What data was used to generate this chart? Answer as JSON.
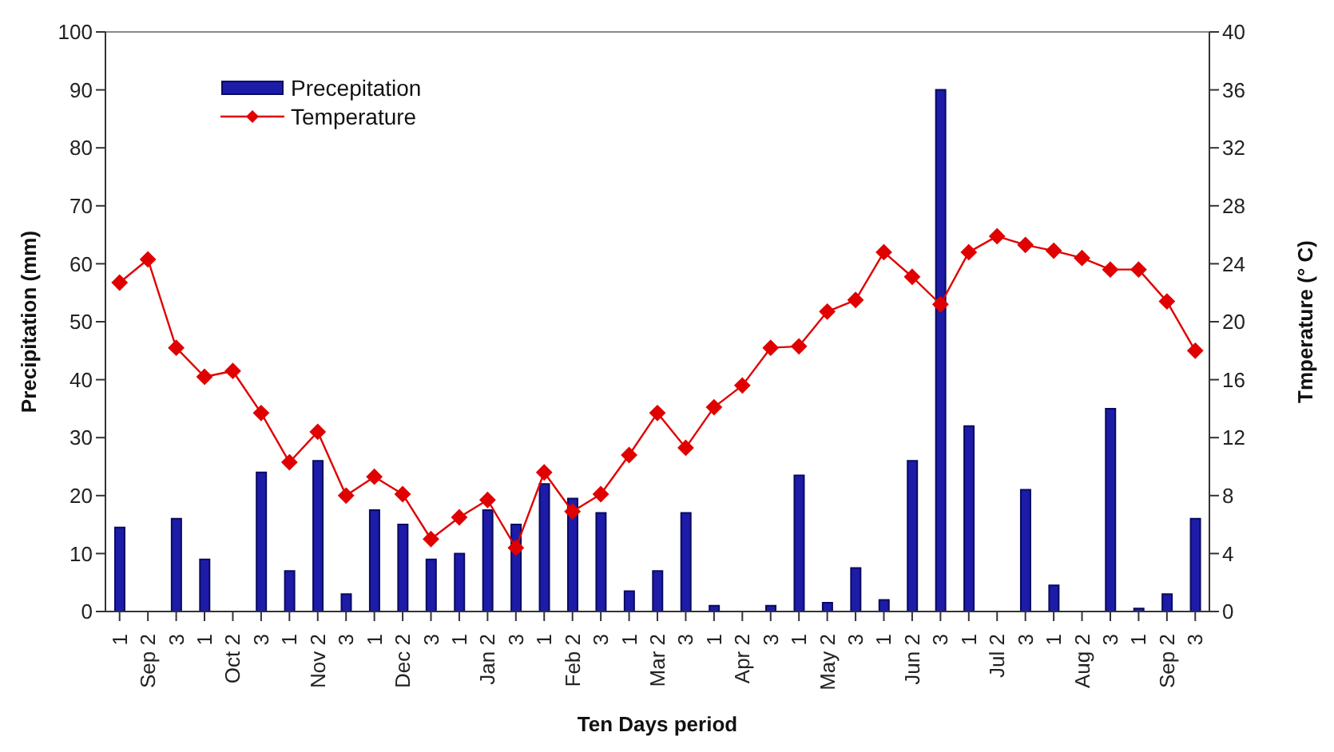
{
  "chart_data": {
    "type": "bar",
    "xlabel": "Ten Days period",
    "ylabel": "Precipitation (mm)",
    "y2label": "Tmperature (° C)",
    "categories": [
      "1",
      "Sep 2",
      "3",
      "1",
      "Oct 2",
      "3",
      "1",
      "Nov 2",
      "3",
      "1",
      "Dec 2",
      "3",
      "1",
      "Jan 2",
      "3",
      "1",
      "Feb 2",
      "3",
      "1",
      "Mar 2",
      "3",
      "1",
      "Apr 2",
      "3",
      "1",
      "May 2",
      "3",
      "1",
      "Jun 2",
      "3",
      "1",
      "Jul 2",
      "3",
      "1",
      "Aug 2",
      "3",
      "1",
      "Sep 2",
      "3"
    ],
    "series": [
      {
        "name": "Precepitation",
        "color": "#1c1ca8",
        "values": [
          14.5,
          0,
          16,
          9,
          0,
          24,
          7,
          26,
          3,
          17.5,
          15,
          9,
          10,
          17.5,
          15,
          22,
          19.5,
          17,
          3.5,
          7,
          17,
          1,
          0,
          1,
          23.5,
          1.5,
          7.5,
          2,
          26,
          90,
          32,
          0,
          21,
          4.5,
          0,
          35,
          0.5,
          3,
          16
        ]
      },
      {
        "name": "Temperature",
        "type": "line",
        "axis": "y2",
        "color": "#e00000",
        "marker": "diamond",
        "values": [
          22.7,
          24.3,
          18.2,
          16.2,
          16.6,
          13.7,
          10.3,
          12.4,
          8.0,
          9.3,
          8.1,
          5.0,
          6.5,
          7.7,
          4.4,
          9.6,
          6.9,
          8.1,
          10.8,
          13.7,
          11.3,
          14.1,
          15.6,
          18.2,
          18.3,
          20.7,
          21.5,
          24.8,
          23.1,
          21.2,
          24.8,
          25.9,
          25.3,
          24.9,
          24.4,
          23.6,
          23.6,
          21.4,
          18.0
        ]
      }
    ],
    "ylim": [
      0,
      100
    ],
    "yticks": [
      0,
      10,
      20,
      30,
      40,
      50,
      60,
      70,
      80,
      90,
      100
    ],
    "y2lim": [
      0,
      40
    ],
    "y2ticks": [
      0,
      4,
      8,
      12,
      16,
      20,
      24,
      28,
      32,
      36,
      40
    ],
    "legend": "top left",
    "grid": false
  }
}
